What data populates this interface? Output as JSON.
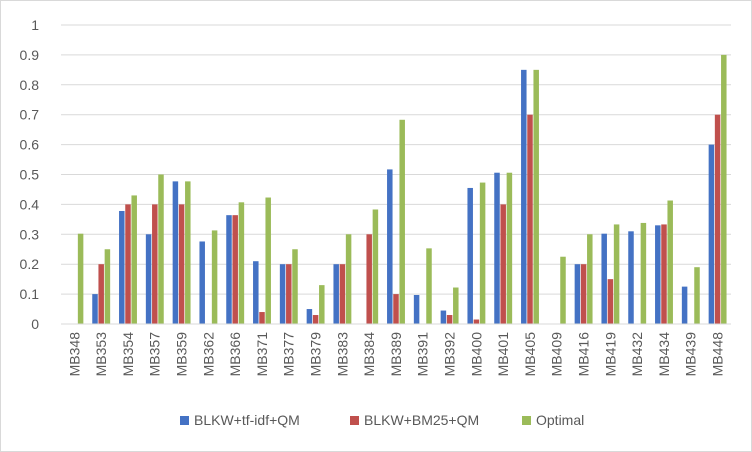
{
  "chart_data": {
    "type": "bar",
    "title": "",
    "xlabel": "",
    "ylabel": "",
    "ylim": [
      0,
      1
    ],
    "yticks": [
      "0",
      "0.1",
      "0.2",
      "0.3",
      "0.4",
      "0.5",
      "0.6",
      "0.7",
      "0.8",
      "0.9",
      "1"
    ],
    "grid": true,
    "legend_position": "bottom",
    "categories": [
      "MB348",
      "MB353",
      "MB354",
      "MB357",
      "MB359",
      "MB362",
      "MB366",
      "MB371",
      "MB377",
      "MB379",
      "MB383",
      "MB384",
      "MB389",
      "MB391",
      "MB392",
      "MB400",
      "MB401",
      "MB405",
      "MB409",
      "MB416",
      "MB419",
      "MB432",
      "MB434",
      "MB439",
      "MB448"
    ],
    "series": [
      {
        "name": "BLKW+tf-idf+QM",
        "color": "#4472C4",
        "values": [
          0,
          0.1,
          0.378,
          0.3,
          0.477,
          0.276,
          0.364,
          0.21,
          0.2,
          0.05,
          0.2,
          0,
          0.517,
          0.097,
          0.045,
          0.455,
          0.506,
          0.85,
          0,
          0.2,
          0.302,
          0.31,
          0.33,
          0.125,
          0.6
        ]
      },
      {
        "name": "BLKW+BM25+QM",
        "color": "#C0504D",
        "values": [
          0,
          0.2,
          0.4,
          0.4,
          0.4,
          0,
          0.364,
          0.04,
          0.2,
          0.03,
          0.2,
          0.3,
          0.1,
          0,
          0.03,
          0.015,
          0.4,
          0.7,
          0,
          0.2,
          0.15,
          0,
          0.333,
          0,
          0.7
        ]
      },
      {
        "name": "Optimal",
        "color": "#9BBB59",
        "values": [
          0.302,
          0.25,
          0.43,
          0.5,
          0.477,
          0.313,
          0.407,
          0.423,
          0.25,
          0.13,
          0.3,
          0.383,
          0.683,
          0.253,
          0.122,
          0.473,
          0.506,
          0.85,
          0.225,
          0.3,
          0.333,
          0.338,
          0.413,
          0.19,
          0.9
        ]
      }
    ]
  }
}
